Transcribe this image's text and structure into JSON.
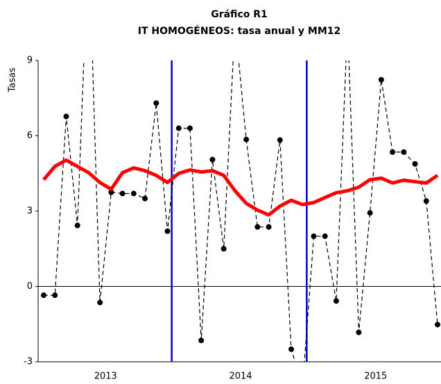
{
  "chart_data": {
    "type": "line",
    "title": "Gráfico R1",
    "subtitle": "IT HOMOGÉNEOS: tasa anual y MM12",
    "y_label": "Tasas",
    "categories": [
      null,
      null,
      null,
      null,
      null,
      null,
      null,
      null,
      null,
      null,
      null,
      null,
      null,
      null,
      null,
      null,
      null,
      null,
      null,
      null,
      null,
      null,
      null,
      null,
      null,
      null,
      null,
      null,
      null,
      null,
      null,
      null,
      null,
      null,
      null,
      null
    ],
    "group_labels": [
      "2013",
      "2014",
      "2015"
    ],
    "group_size": 12,
    "group_divider_color": "#0000cc",
    "series": [
      {
        "color": "#000000",
        "dashed": true,
        "markers": true,
        "width": 1.2,
        "values": [
          -0.35,
          -0.35,
          6.77,
          2.43,
          14,
          -0.64,
          3.75,
          3.7,
          3.7,
          3.5,
          7.3,
          2.2,
          6.3,
          6.3,
          -2.15,
          5.05,
          1.5,
          10.5,
          5.85,
          2.37,
          2.37,
          5.83,
          -2.5,
          -4,
          2.0,
          2.0,
          -0.58,
          10.5,
          -1.83,
          2.93,
          8.23,
          5.35,
          5.35,
          4.88,
          3.4,
          -1.52
        ]
      },
      {
        "color": "#ff0000",
        "dashed": false,
        "markers": false,
        "width": 5,
        "values": [
          4.25,
          4.78,
          5.03,
          4.78,
          4.53,
          4.14,
          3.87,
          4.53,
          4.72,
          4.61,
          4.42,
          4.14,
          4.5,
          4.64,
          4.56,
          4.61,
          4.42,
          3.81,
          3.31,
          3.04,
          2.85,
          3.2,
          3.43,
          3.26,
          3.34,
          3.54,
          3.73,
          3.81,
          3.95,
          4.25,
          4.31,
          4.12,
          4.23,
          4.17,
          4.12,
          4.42
        ]
      }
    ],
    "ylim": [
      -3,
      9
    ],
    "yticks": [
      -3,
      0,
      3,
      6,
      9
    ],
    "zero_line": true,
    "grid": false
  }
}
